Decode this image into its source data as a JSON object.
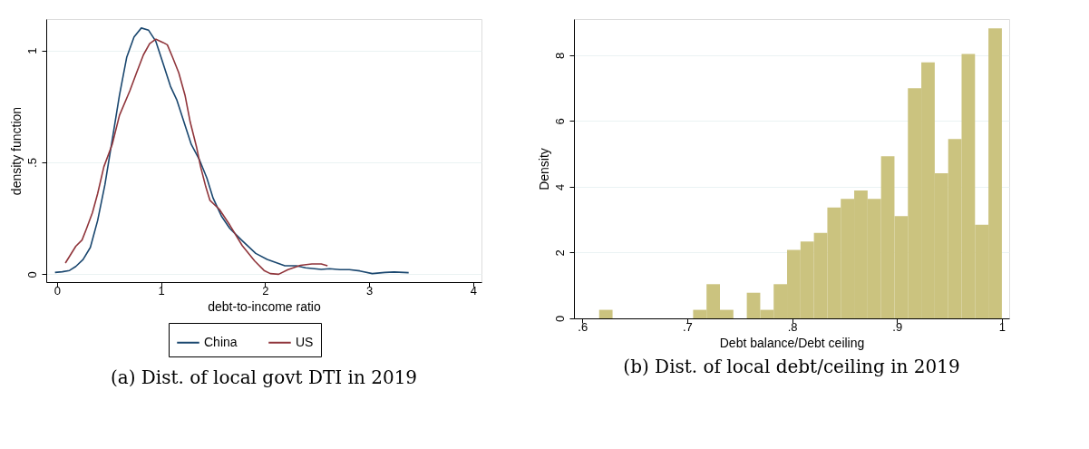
{
  "chart_data": [
    {
      "type": "line",
      "title": "(a) Dist. of local govt DTI in 2019",
      "xlabel": "debt-to-income ratio",
      "ylabel": "density function",
      "xlim": [
        -0.104,
        4.08
      ],
      "ylim": [
        -0.035,
        1.14
      ],
      "xticks": [
        0,
        1,
        2,
        3,
        4
      ],
      "yticks": [
        0,
        {
          "value": 0.5,
          "label": ".5"
        },
        1
      ],
      "grid": "y",
      "legend": "bottom",
      "line_style": "solid",
      "marker": "none",
      "series": [
        {
          "name": "China",
          "color": "#1a476f",
          "x": [
            -0.02,
            0.05,
            0.12,
            0.18,
            0.25,
            0.32,
            0.39,
            0.46,
            0.53,
            0.6,
            0.67,
            0.74,
            0.81,
            0.88,
            0.95,
            1.02,
            1.09,
            1.15,
            1.22,
            1.29,
            1.37,
            1.44,
            1.5,
            1.58,
            1.66,
            1.78,
            1.91,
            2.02,
            2.19,
            2.3,
            2.39,
            2.54,
            2.62,
            2.72,
            2.81,
            2.91,
            3.03,
            3.15,
            3.24,
            3.38
          ],
          "values": [
            0.008,
            0.011,
            0.017,
            0.035,
            0.066,
            0.12,
            0.24,
            0.4,
            0.6,
            0.8,
            0.97,
            1.06,
            1.1,
            1.09,
            1.04,
            0.94,
            0.84,
            0.78,
            0.68,
            0.58,
            0.51,
            0.43,
            0.34,
            0.26,
            0.205,
            0.15,
            0.093,
            0.066,
            0.038,
            0.038,
            0.029,
            0.022,
            0.025,
            0.021,
            0.021,
            0.015,
            0.003,
            0.008,
            0.01,
            0.007
          ]
        },
        {
          "name": "US",
          "color": "#90353b",
          "x": [
            0.08,
            0.18,
            0.24,
            0.28,
            0.34,
            0.39,
            0.45,
            0.53,
            0.6,
            0.7,
            0.76,
            0.83,
            0.89,
            0.95,
            1.02,
            1.06,
            1.11,
            1.17,
            1.23,
            1.28,
            1.34,
            1.38,
            1.43,
            1.47,
            1.56,
            1.66,
            1.78,
            1.9,
            1.99,
            2.05,
            2.13,
            2.22,
            2.34,
            2.45,
            2.54,
            2.6
          ],
          "values": [
            0.05,
            0.125,
            0.153,
            0.2,
            0.275,
            0.36,
            0.48,
            0.58,
            0.71,
            0.82,
            0.895,
            0.98,
            1.03,
            1.05,
            1.035,
            1.025,
            0.97,
            0.9,
            0.8,
            0.68,
            0.57,
            0.48,
            0.39,
            0.33,
            0.29,
            0.22,
            0.128,
            0.059,
            0.017,
            0.003,
            0.0,
            0.021,
            0.04,
            0.046,
            0.046,
            0.038
          ]
        }
      ]
    },
    {
      "type": "histogram",
      "title": "(b) Dist. of local debt/ceiling in 2019",
      "xlabel": "Debt balance/Debt ceiling",
      "ylabel": "Density",
      "xlim": [
        0.592,
        1.007
      ],
      "ylim": [
        0,
        9.1
      ],
      "xticks": [
        {
          "value": 0.6,
          "label": ".6"
        },
        {
          "value": 0.7,
          "label": ".7"
        },
        {
          "value": 0.8,
          "label": ".8"
        },
        {
          "value": 0.9,
          "label": ".9"
        },
        1
      ],
      "yticks": [
        0,
        2,
        4,
        6,
        8
      ],
      "grid": "y",
      "color": "#cbc37f",
      "bins": [
        0.616,
        0.6288,
        0.6416,
        0.6544,
        0.6672,
        0.68,
        0.6928,
        0.7056,
        0.7184,
        0.7312,
        0.744,
        0.7568,
        0.7696,
        0.7824,
        0.7952,
        0.808,
        0.8208,
        0.8336,
        0.8464,
        0.8592,
        0.872,
        0.8848,
        0.8976,
        0.9104,
        0.9232,
        0.936,
        0.9488,
        0.9616,
        0.9744,
        0.9872,
        1.0
      ],
      "values": [
        0.26,
        0,
        0,
        0,
        0,
        0,
        0,
        0.26,
        1.04,
        0.26,
        0,
        0.78,
        0.26,
        1.04,
        2.08,
        2.34,
        2.6,
        3.37,
        3.63,
        3.89,
        3.63,
        4.93,
        3.11,
        7.0,
        7.78,
        4.41,
        5.45,
        8.04,
        2.85,
        8.82
      ]
    }
  ]
}
